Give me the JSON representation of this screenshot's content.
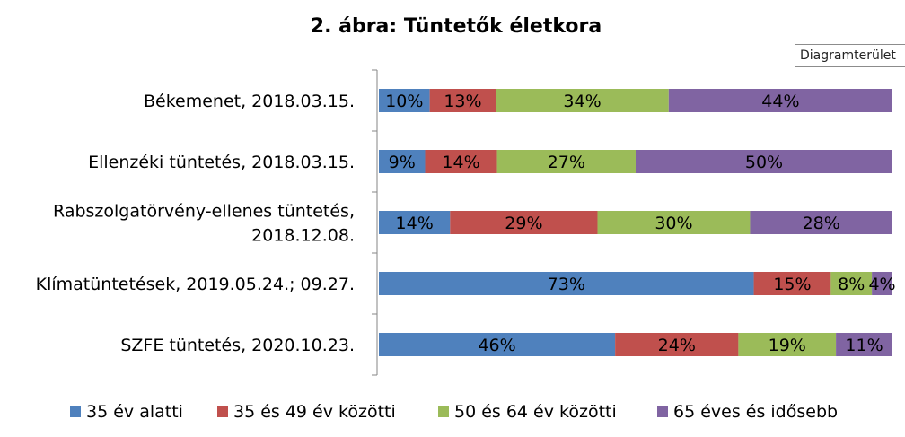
{
  "chart_data": {
    "type": "bar",
    "orientation": "horizontal",
    "stacked": true,
    "percent": true,
    "title": "2. ábra: Tüntetők életkora",
    "categories": [
      [
        "Békemenet, 2018.03.15."
      ],
      [
        "Ellenzéki tüntetés, 2018.03.15."
      ],
      [
        "Rabszolgatörvény-ellenes tüntetés,",
        "2018.12.08."
      ],
      [
        "Klímatüntetések, 2019.05.24.; 09.27."
      ],
      [
        "SZFE tüntetés, 2020.10.23."
      ]
    ],
    "series": [
      {
        "name": "35 év alatti",
        "color": "#4f81bd",
        "values": [
          10,
          9,
          14,
          73,
          46
        ]
      },
      {
        "name": "35 és 49 év közötti",
        "color": "#c0504d",
        "values": [
          13,
          14,
          29,
          15,
          24
        ]
      },
      {
        "name": "50 és 64 év közötti",
        "color": "#9bbb59",
        "values": [
          34,
          27,
          30,
          8,
          19
        ]
      },
      {
        "name": "65 éves és idősebb",
        "color": "#8064a2",
        "values": [
          44,
          50,
          28,
          4,
          11
        ]
      }
    ],
    "legend_position": "bottom",
    "grid": false
  },
  "tooltip": "Diagramterület"
}
